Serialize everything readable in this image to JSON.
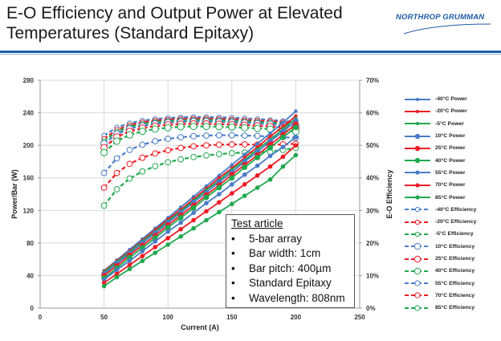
{
  "slide": {
    "title_line1": "E-O Efficiency and Output Power at Elevated",
    "title_line2": "Temperatures (Standard Epitaxy)",
    "logo_text": "NORTHROP GRUMMAN",
    "colors": {
      "rule": "#1f5fae",
      "logo": "#1e5aa8"
    }
  },
  "textbox": {
    "title": "Test article",
    "bullet_glyph": "•",
    "items": [
      "5-bar array",
      "Bar width:  1cm",
      "Bar pitch:  400µm",
      "Standard Epitaxy",
      "Wavelength: 808nm"
    ]
  },
  "chart_data": {
    "type": "line",
    "title": "",
    "xlabel": "Current (A)",
    "ylabel": "Power/Bar (W)",
    "y2label": "E-O Efficiency",
    "xlim": [
      0,
      250
    ],
    "ylim": [
      0,
      280
    ],
    "y2lim": [
      0,
      70
    ],
    "xticks": [
      0,
      50,
      100,
      150,
      200,
      250
    ],
    "yticks": [
      0,
      40,
      80,
      120,
      160,
      200,
      240,
      280
    ],
    "y2ticks": [
      "0%",
      "10%",
      "20%",
      "30%",
      "40%",
      "50%",
      "60%",
      "70%"
    ],
    "grid": true,
    "legend_position": "right",
    "x": [
      50,
      60,
      70,
      80,
      90,
      100,
      110,
      120,
      130,
      140,
      150,
      160,
      170,
      180,
      190,
      200
    ],
    "colors": {
      "blue": "#4a7cc7",
      "red": "#ee1c25",
      "green": "#1fa84f"
    },
    "series": [
      {
        "name": "-40°C Power",
        "axis": "left",
        "style": "solid",
        "color": "blue",
        "marker": "small",
        "values": [
          46,
          59,
          72,
          85,
          98,
          111,
          124,
          137,
          150,
          163,
          176,
          189,
          202,
          215,
          228,
          242
        ]
      },
      {
        "name": "-20°C Power",
        "axis": "left",
        "style": "solid",
        "color": "red",
        "marker": "small",
        "values": [
          45,
          58,
          70,
          83,
          96,
          109,
          121,
          134,
          147,
          160,
          172,
          185,
          198,
          211,
          223,
          236
        ]
      },
      {
        "name": "-5°C Power",
        "axis": "left",
        "style": "solid",
        "color": "green",
        "marker": "small",
        "values": [
          44,
          57,
          69,
          82,
          94,
          107,
          119,
          132,
          145,
          157,
          170,
          182,
          195,
          207,
          220,
          233
        ]
      },
      {
        "name": "10°C Power",
        "axis": "left",
        "style": "solid",
        "color": "blue",
        "marker": "large",
        "values": [
          42,
          55,
          67,
          80,
          92,
          105,
          117,
          130,
          142,
          155,
          167,
          180,
          192,
          205,
          217,
          230
        ]
      },
      {
        "name": "25°C Power",
        "axis": "left",
        "style": "solid",
        "color": "red",
        "marker": "large",
        "values": [
          40,
          52,
          65,
          77,
          89,
          102,
          114,
          126,
          139,
          151,
          164,
          176,
          188,
          201,
          213,
          226
        ]
      },
      {
        "name": "40°C Power",
        "axis": "left",
        "style": "solid",
        "color": "green",
        "marker": "large",
        "values": [
          37,
          49,
          62,
          74,
          86,
          99,
          111,
          123,
          136,
          148,
          160,
          173,
          185,
          197,
          210,
          222
        ]
      },
      {
        "name": "55°C Power",
        "axis": "left",
        "style": "solid",
        "color": "blue",
        "marker": "medium",
        "values": [
          35,
          47,
          58,
          70,
          82,
          94,
          105,
          117,
          129,
          140,
          152,
          164,
          175,
          187,
          198,
          210
        ]
      },
      {
        "name": "70°C Power",
        "axis": "left",
        "style": "solid",
        "color": "red",
        "marker": "medium",
        "values": [
          31,
          42,
          53,
          64,
          75,
          86,
          97,
          108,
          119,
          130,
          141,
          152,
          163,
          174,
          186,
          200
        ]
      },
      {
        "name": "85°C Power",
        "axis": "left",
        "style": "solid",
        "color": "green",
        "marker": "medium",
        "values": [
          27,
          38,
          48,
          58,
          68,
          78,
          88,
          98,
          108,
          118,
          128,
          138,
          148,
          158,
          174,
          188
        ]
      },
      {
        "name": "-40°C Efficiency",
        "axis": "right",
        "style": "dashed",
        "color": "blue",
        "marker": "small",
        "values": [
          53.0,
          55.5,
          56.8,
          57.6,
          58.1,
          58.4,
          58.6,
          58.7,
          58.7,
          58.6,
          58.5,
          58.3,
          58.1,
          57.8,
          57.5,
          57.2
        ]
      },
      {
        "name": "-20°C Efficiency",
        "axis": "right",
        "style": "dashed",
        "color": "red",
        "marker": "small",
        "values": [
          52.0,
          54.8,
          56.2,
          57.1,
          57.6,
          57.9,
          58.1,
          58.2,
          58.2,
          58.1,
          58.0,
          57.8,
          57.6,
          57.4,
          57.1,
          56.8
        ]
      },
      {
        "name": "-5°C Efficiency",
        "axis": "right",
        "style": "dashed",
        "color": "green",
        "marker": "small",
        "values": [
          51.3,
          54.2,
          55.7,
          56.6,
          57.2,
          57.5,
          57.7,
          57.8,
          57.8,
          57.7,
          57.6,
          57.4,
          57.2,
          57.0,
          56.7,
          56.4
        ]
      },
      {
        "name": "10°C Efficiency",
        "axis": "right",
        "style": "dashed",
        "color": "blue",
        "marker": "large",
        "values": [
          50.5,
          53.5,
          55.1,
          56.0,
          56.6,
          57.0,
          57.2,
          57.3,
          57.3,
          57.2,
          57.1,
          56.9,
          56.7,
          56.5,
          56.2,
          55.9
        ]
      },
      {
        "name": "25°C Efficiency",
        "axis": "right",
        "style": "dashed",
        "color": "red",
        "marker": "large",
        "values": [
          49.3,
          52.6,
          54.3,
          55.3,
          55.9,
          56.3,
          56.5,
          56.6,
          56.6,
          56.5,
          56.4,
          56.2,
          56.0,
          55.8,
          55.5,
          55.2
        ]
      },
      {
        "name": "40°C Efficiency",
        "axis": "right",
        "style": "dashed",
        "color": "green",
        "marker": "large",
        "values": [
          47.8,
          51.3,
          53.2,
          54.3,
          55.0,
          55.4,
          55.7,
          55.8,
          55.8,
          55.7,
          55.6,
          55.4,
          55.2,
          55.0,
          54.6,
          54.2
        ]
      },
      {
        "name": "55°C Efficiency",
        "axis": "right",
        "style": "dashed",
        "color": "blue",
        "marker": "medium",
        "values": [
          41.5,
          46.0,
          48.6,
          50.2,
          51.3,
          52.0,
          52.5,
          52.8,
          53.0,
          53.1,
          53.1,
          53.0,
          52.9,
          52.7,
          52.5,
          52.3
        ]
      },
      {
        "name": "70°C Efficiency",
        "axis": "right",
        "style": "dashed",
        "color": "red",
        "marker": "medium",
        "values": [
          37.0,
          41.5,
          44.3,
          46.2,
          47.5,
          48.5,
          49.2,
          49.7,
          50.0,
          50.2,
          50.3,
          50.3,
          50.2,
          50.1,
          50.3,
          50.5
        ]
      },
      {
        "name": "85°C Efficiency",
        "axis": "right",
        "style": "dashed",
        "color": "green",
        "marker": "medium",
        "values": [
          31.5,
          36.5,
          39.8,
          42.0,
          43.6,
          44.8,
          45.7,
          46.4,
          46.9,
          47.3,
          47.6,
          47.8,
          47.9,
          48.0,
          48.6,
          49.2
        ]
      }
    ]
  }
}
